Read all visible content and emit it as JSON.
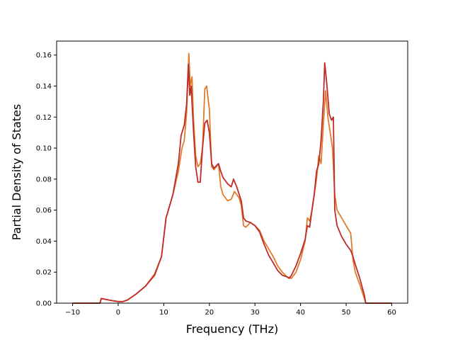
{
  "chart_data": {
    "type": "line",
    "title": "",
    "xlabel": "Frequency (THz)",
    "ylabel": "Partial Density of States",
    "xlim": [
      -13.5,
      63.5
    ],
    "ylim": [
      0.0,
      0.169
    ],
    "xticks": [
      -10,
      0,
      10,
      20,
      30,
      40,
      50,
      60
    ],
    "yticks": [
      0.0,
      0.02,
      0.04,
      0.06,
      0.08,
      0.1,
      0.12,
      0.14,
      0.16
    ],
    "xtick_labels": [
      "−10",
      "0",
      "10",
      "20",
      "30",
      "40",
      "50",
      "60"
    ],
    "ytick_labels": [
      "0.00",
      "0.02",
      "0.04",
      "0.06",
      "0.08",
      "0.10",
      "0.12",
      "0.14",
      "0.16"
    ],
    "grid": false,
    "legend": "none",
    "series": [
      {
        "color": "#e07b2a",
        "points": [
          [
            -10,
            0
          ],
          [
            -4,
            0
          ],
          [
            -3.7,
            0.003
          ],
          [
            -2,
            0.002
          ],
          [
            0,
            0.001
          ],
          [
            1,
            0.001
          ],
          [
            2,
            0.002
          ],
          [
            4,
            0.006
          ],
          [
            6,
            0.011
          ],
          [
            8,
            0.019
          ],
          [
            9.5,
            0.03
          ],
          [
            10.5,
            0.055
          ],
          [
            12,
            0.07
          ],
          [
            13.2,
            0.085
          ],
          [
            14,
            0.1
          ],
          [
            14.5,
            0.105
          ],
          [
            15,
            0.122
          ],
          [
            15.5,
            0.161
          ],
          [
            15.8,
            0.14
          ],
          [
            16.2,
            0.146
          ],
          [
            16.5,
            0.12
          ],
          [
            17,
            0.095
          ],
          [
            17.5,
            0.088
          ],
          [
            18,
            0.09
          ],
          [
            18.5,
            0.1
          ],
          [
            19,
            0.138
          ],
          [
            19.4,
            0.14
          ],
          [
            20,
            0.125
          ],
          [
            20.5,
            0.088
          ],
          [
            21,
            0.086
          ],
          [
            22,
            0.09
          ],
          [
            22.5,
            0.075
          ],
          [
            23,
            0.07
          ],
          [
            24,
            0.066
          ],
          [
            24.8,
            0.067
          ],
          [
            25.5,
            0.072
          ],
          [
            26.5,
            0.068
          ],
          [
            27,
            0.063
          ],
          [
            27.5,
            0.05
          ],
          [
            28,
            0.049
          ],
          [
            29,
            0.052
          ],
          [
            30,
            0.05
          ],
          [
            31,
            0.047
          ],
          [
            32,
            0.04
          ],
          [
            33,
            0.035
          ],
          [
            34,
            0.03
          ],
          [
            35,
            0.024
          ],
          [
            36,
            0.02
          ],
          [
            37,
            0.017
          ],
          [
            38,
            0.016
          ],
          [
            39,
            0.02
          ],
          [
            40,
            0.028
          ],
          [
            41,
            0.04
          ],
          [
            41.5,
            0.055
          ],
          [
            42,
            0.053
          ],
          [
            42.5,
            0.06
          ],
          [
            43,
            0.07
          ],
          [
            43.5,
            0.08
          ],
          [
            44,
            0.095
          ],
          [
            44.5,
            0.09
          ],
          [
            45,
            0.115
          ],
          [
            45.5,
            0.137
          ],
          [
            46,
            0.12
          ],
          [
            46.5,
            0.11
          ],
          [
            47,
            0.1
          ],
          [
            47.5,
            0.07
          ],
          [
            48,
            0.06
          ],
          [
            49,
            0.055
          ],
          [
            50,
            0.05
          ],
          [
            51,
            0.045
          ],
          [
            51.5,
            0.028
          ],
          [
            52,
            0.02
          ],
          [
            53,
            0.012
          ],
          [
            54,
            0.003
          ],
          [
            54.3,
            0
          ],
          [
            60,
            0
          ]
        ]
      },
      {
        "color": "#bf2a2a",
        "points": [
          [
            -10,
            0
          ],
          [
            -4,
            0
          ],
          [
            -3.7,
            0.003
          ],
          [
            -2,
            0.002
          ],
          [
            0,
            0.001
          ],
          [
            1,
            0.001
          ],
          [
            2,
            0.002
          ],
          [
            4,
            0.006
          ],
          [
            6,
            0.011
          ],
          [
            8,
            0.018
          ],
          [
            9.5,
            0.03
          ],
          [
            10.5,
            0.055
          ],
          [
            12,
            0.07
          ],
          [
            13.2,
            0.09
          ],
          [
            13.8,
            0.108
          ],
          [
            14.5,
            0.115
          ],
          [
            15,
            0.128
          ],
          [
            15.4,
            0.154
          ],
          [
            15.7,
            0.134
          ],
          [
            16,
            0.14
          ],
          [
            16.5,
            0.112
          ],
          [
            17,
            0.088
          ],
          [
            17.5,
            0.078
          ],
          [
            18,
            0.078
          ],
          [
            18.5,
            0.1
          ],
          [
            19,
            0.116
          ],
          [
            19.5,
            0.118
          ],
          [
            20,
            0.11
          ],
          [
            20.5,
            0.09
          ],
          [
            21,
            0.087
          ],
          [
            22,
            0.09
          ],
          [
            22.5,
            0.085
          ],
          [
            23,
            0.081
          ],
          [
            24,
            0.077
          ],
          [
            24.8,
            0.075
          ],
          [
            25.3,
            0.08
          ],
          [
            26,
            0.075
          ],
          [
            27,
            0.066
          ],
          [
            27.5,
            0.055
          ],
          [
            28,
            0.053
          ],
          [
            29,
            0.052
          ],
          [
            30,
            0.05
          ],
          [
            31,
            0.046
          ],
          [
            32,
            0.038
          ],
          [
            33,
            0.031
          ],
          [
            34,
            0.026
          ],
          [
            35,
            0.021
          ],
          [
            36,
            0.018
          ],
          [
            37,
            0.017
          ],
          [
            37.5,
            0.016
          ],
          [
            38,
            0.018
          ],
          [
            39,
            0.024
          ],
          [
            40,
            0.032
          ],
          [
            41,
            0.041
          ],
          [
            41.5,
            0.05
          ],
          [
            42,
            0.049
          ],
          [
            42.5,
            0.06
          ],
          [
            43,
            0.07
          ],
          [
            43.5,
            0.085
          ],
          [
            44,
            0.09
          ],
          [
            44.5,
            0.105
          ],
          [
            45,
            0.13
          ],
          [
            45.3,
            0.155
          ],
          [
            45.8,
            0.14
          ],
          [
            46.3,
            0.122
          ],
          [
            46.8,
            0.118
          ],
          [
            47.2,
            0.12
          ],
          [
            47.5,
            0.06
          ],
          [
            48,
            0.05
          ],
          [
            49,
            0.043
          ],
          [
            50,
            0.038
          ],
          [
            51,
            0.034
          ],
          [
            51.5,
            0.03
          ],
          [
            52,
            0.025
          ],
          [
            53,
            0.016
          ],
          [
            54,
            0.005
          ],
          [
            54.3,
            0
          ],
          [
            60,
            0
          ]
        ]
      }
    ]
  }
}
